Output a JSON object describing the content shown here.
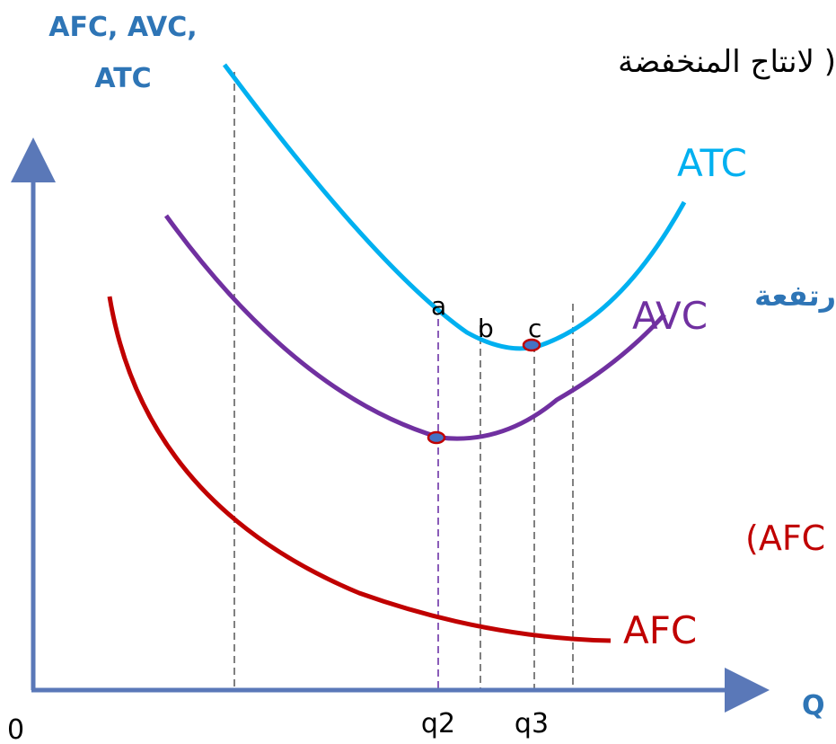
{
  "axis_label_y": [
    "AFC, AVC,",
    "ATC"
  ],
  "axis_label_x": "Q",
  "origin": "0",
  "arabic_top": "لانتاج المنخفضة )",
  "arabic_right": "رتفعة",
  "curves": {
    "atc": "ATC",
    "avc": "AVC",
    "afc": "AFC"
  },
  "afc_note": "(AFC",
  "points": [
    "a",
    "b",
    "c"
  ],
  "quantities": [
    "q2",
    "q3"
  ]
}
